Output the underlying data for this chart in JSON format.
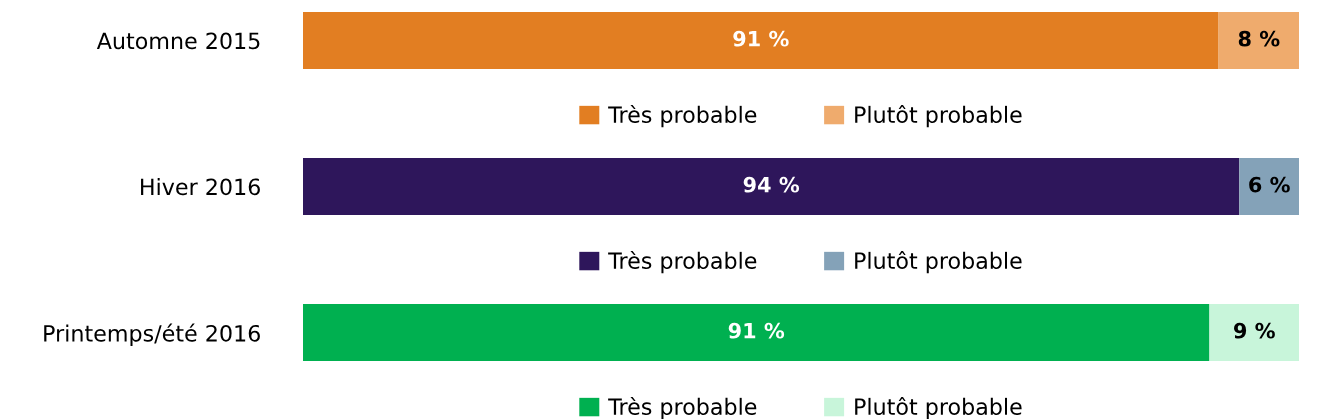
{
  "chart_data": [
    {
      "type": "bar",
      "orientation": "horizontal",
      "stacked": true,
      "categories": [
        "Automne 2015"
      ],
      "tick_labels": "y",
      "grid": false,
      "legend": "bottom",
      "series": [
        {
          "name": "Très probable",
          "color": "#e27e22",
          "values": [
            91
          ],
          "value_labels": [
            "91 %"
          ]
        },
        {
          "name": "Plutôt probable",
          "color": "#efab6d",
          "values": [
            8
          ],
          "value_labels": [
            "8 %"
          ]
        }
      ]
    },
    {
      "type": "bar",
      "orientation": "horizontal",
      "stacked": true,
      "categories": [
        "Hiver 2016"
      ],
      "tick_labels": "y",
      "grid": false,
      "legend": "bottom",
      "series": [
        {
          "name": "Très probable",
          "color": "#2e165b",
          "values": [
            94
          ],
          "value_labels": [
            "94 %"
          ]
        },
        {
          "name": "Plutôt probable",
          "color": "#84a2b8",
          "values": [
            6
          ],
          "value_labels": [
            "6 %"
          ]
        }
      ]
    },
    {
      "type": "bar",
      "orientation": "horizontal",
      "stacked": true,
      "categories": [
        "Printemps/été 2016"
      ],
      "tick_labels": "y",
      "grid": false,
      "legend": "bottom",
      "series": [
        {
          "name": "Très probable",
          "color": "#00b050",
          "values": [
            91
          ],
          "value_labels": [
            "91 %"
          ]
        },
        {
          "name": "Plutôt probable",
          "color": "#c8f5da",
          "values": [
            9
          ],
          "value_labels": [
            "9 %"
          ]
        }
      ]
    }
  ]
}
